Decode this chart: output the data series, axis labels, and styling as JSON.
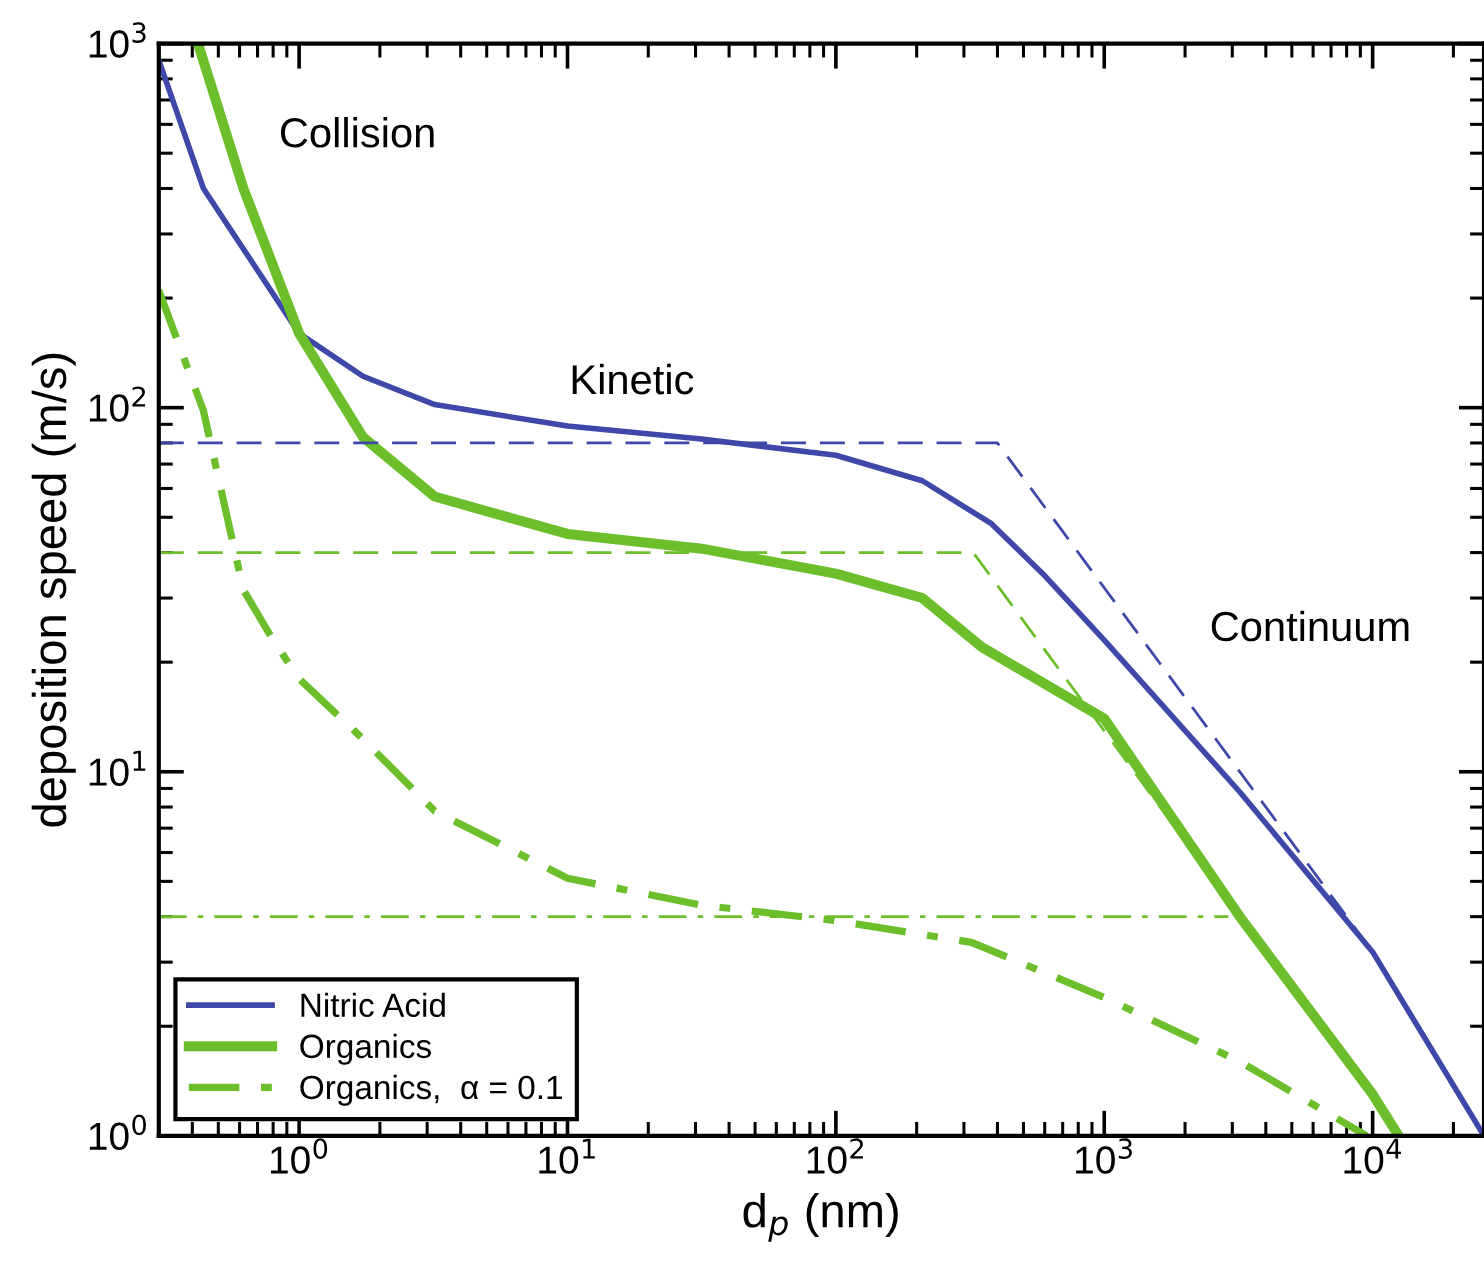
{
  "chart_data": {
    "type": "line",
    "xlabel": "d$_{p}$ (nm)",
    "ylabel": "deposition speed (m/s)",
    "log": "xy",
    "xlim": [
      0.3,
      26000
    ],
    "ylim": [
      1,
      1000
    ],
    "xticks": [
      {
        "value": 1,
        "label": "10$^{0}$"
      },
      {
        "value": 10,
        "label": "10$^{1}$"
      },
      {
        "value": 100,
        "label": "10$^{2}$"
      },
      {
        "value": 1000,
        "label": "10$^{3}$"
      },
      {
        "value": 10000,
        "label": "10$^{4}$"
      }
    ],
    "yticks": [
      {
        "value": 1,
        "label": "10$^{0}$"
      },
      {
        "value": 10,
        "label": "10$^{1}$"
      },
      {
        "value": 100,
        "label": "10$^{2}$"
      },
      {
        "value": 1000,
        "label": "10$^{3}$"
      }
    ],
    "grid": false,
    "legend": "bottom left",
    "marker": "none",
    "series": [
      {
        "name": "Nitric Acid",
        "color": "#3f48a8",
        "line_style": "solid",
        "x": [
          0.3,
          0.44,
          1,
          1.73,
          3.2,
          10,
          31.6,
          100,
          210,
          380,
          590,
          1000,
          3200,
          10000,
          26000
        ],
        "values": [
          900,
          400,
          160,
          122,
          102,
          89,
          82,
          74,
          63,
          48,
          35,
          23,
          8.8,
          3.2,
          1
        ]
      },
      {
        "name": "Organics",
        "color": "#6cbf2a",
        "line_style": "solid",
        "x": [
          0.42,
          0.62,
          1,
          1.73,
          3.2,
          10,
          31.6,
          100,
          210,
          350,
          1000,
          3200,
          10000,
          12500
        ],
        "values": [
          1000,
          400,
          160,
          83,
          57,
          45,
          41,
          35,
          30,
          22,
          14,
          4,
          1.3,
          1
        ]
      },
      {
        "name": "Organics,  α = 0.1",
        "color": "#6cbf2a",
        "line_style": "dashdot",
        "x": [
          0.3,
          0.44,
          0.62,
          0.8,
          1,
          1.73,
          3.2,
          10,
          31.6,
          100,
          320,
          1000,
          3200,
          9500
        ],
        "values": [
          210,
          98,
          31.6,
          23,
          18,
          12.3,
          7.8,
          5.1,
          4.3,
          3.9,
          3.4,
          2.4,
          1.6,
          1
        ]
      },
      {
        "color": "#3f48a8",
        "line_style": "dashed",
        "x": [
          0.3,
          400,
          10000
        ],
        "values": [
          80,
          80,
          3.2
        ]
      },
      {
        "color": "#6cbf2a",
        "line_style": "dashed",
        "x": [
          0.3,
          325,
          3000
        ],
        "values": [
          40,
          40,
          4.3
        ]
      },
      {
        "color": "#6cbf2a",
        "line_style": "dashdot",
        "x": [
          0.3,
          2900
        ],
        "values": [
          4,
          4
        ]
      }
    ],
    "annotations": [
      "Collision",
      "Kinetic",
      "Continuum"
    ]
  }
}
